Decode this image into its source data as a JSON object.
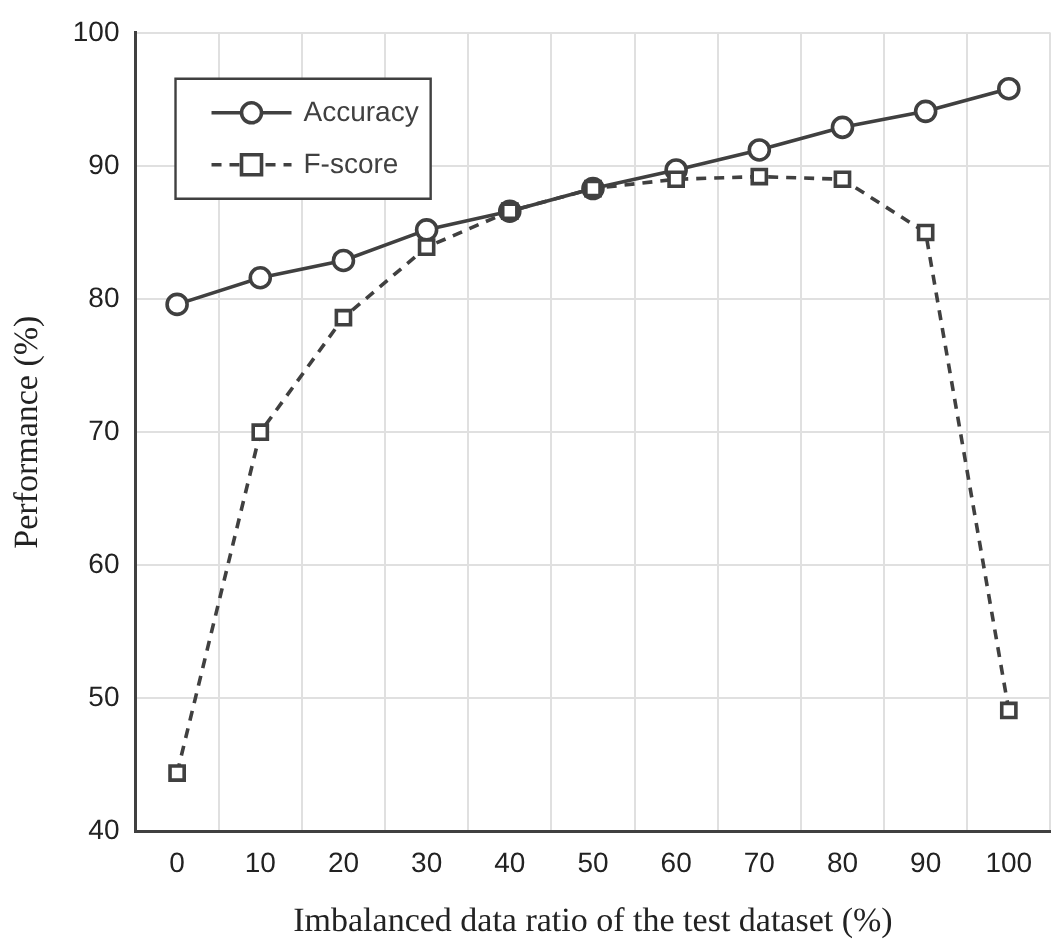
{
  "chart_data": {
    "type": "line",
    "xlabel": "Imbalanced data ratio of the test dataset (%)",
    "ylabel": "Performance (%)",
    "categories": [
      "0",
      "10",
      "20",
      "30",
      "40",
      "50",
      "60",
      "70",
      "80",
      "90",
      "100"
    ],
    "series": [
      {
        "name": "Accuracy",
        "color": "#404040",
        "marker": "circle",
        "line_style": "solid",
        "values": [
          79.6,
          81.6,
          82.9,
          85.2,
          86.6,
          88.3,
          89.7,
          91.2,
          92.9,
          94.1,
          95.8
        ]
      },
      {
        "name": "F-score",
        "color": "#404040",
        "marker": "square",
        "line_style": "dashed",
        "values": [
          44.4,
          70.0,
          78.6,
          83.9,
          86.6,
          88.3,
          89.0,
          89.2,
          89.0,
          85.0,
          49.1
        ]
      }
    ],
    "ylim": [
      40,
      100
    ],
    "yticks": [
      40,
      50,
      60,
      70,
      80,
      90,
      100
    ],
    "grid": true,
    "legend": "top left"
  }
}
